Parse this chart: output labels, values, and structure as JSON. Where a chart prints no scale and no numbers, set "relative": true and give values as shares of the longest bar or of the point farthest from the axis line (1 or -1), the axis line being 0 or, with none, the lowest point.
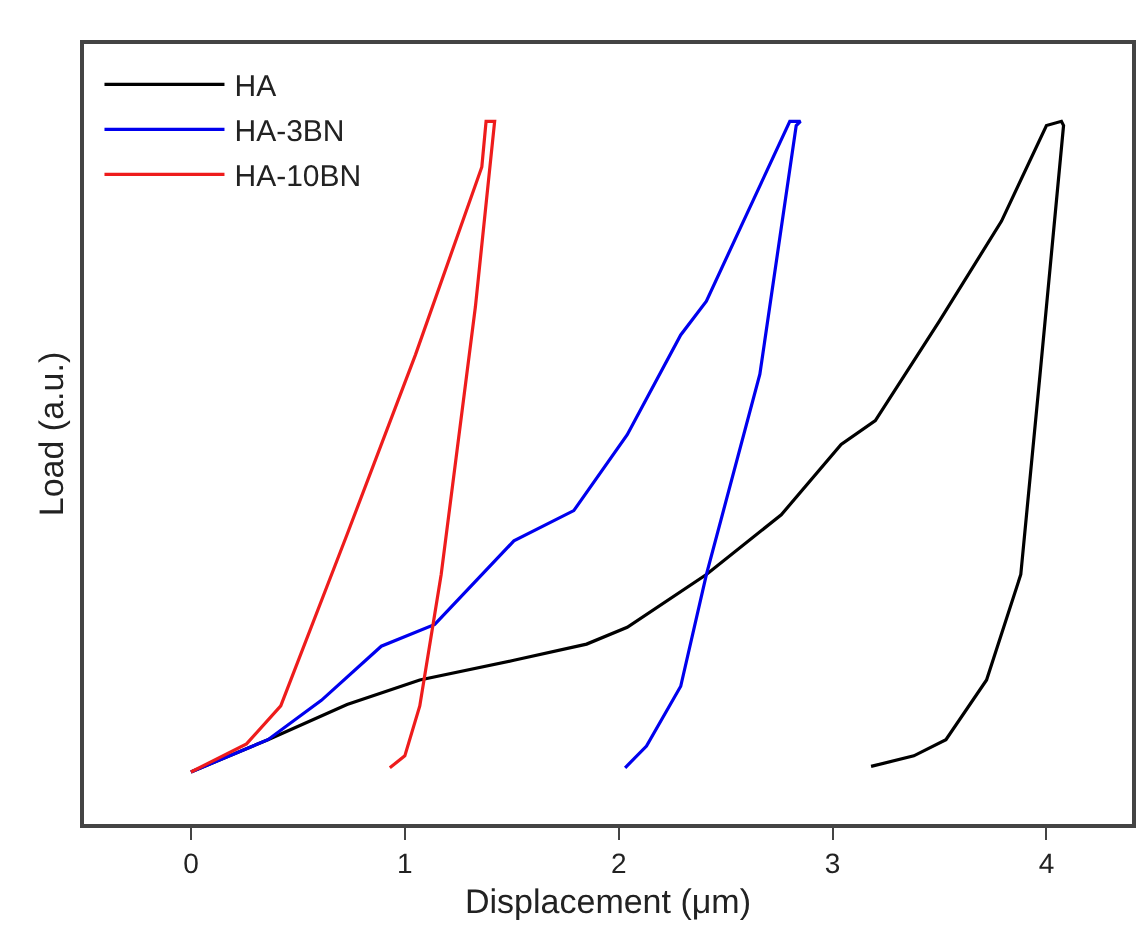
{
  "chart_data": {
    "type": "line",
    "xlabel": "Displacement (μm)",
    "ylabel": "Load (a.u.)",
    "relative": true,
    "xlim": [
      -0.5,
      4.4
    ],
    "xticks": [
      0,
      1,
      2,
      3,
      4
    ],
    "grid": false,
    "legend": "top left",
    "marker": "none",
    "line_style": "solid",
    "series": [
      {
        "name": "HA",
        "color": "#000000",
        "x": [
          0,
          0.36,
          0.73,
          1.07,
          1.51,
          1.85,
          2.04,
          2.41,
          2.76,
          3.04,
          3.2,
          3.5,
          3.79,
          4.0,
          4.07,
          4.08,
          3.97,
          3.88,
          3.72,
          3.53,
          3.38,
          3.18
        ],
        "values": [
          0.074,
          0.12,
          0.17,
          0.205,
          0.233,
          0.256,
          0.28,
          0.355,
          0.44,
          0.54,
          0.574,
          0.716,
          0.858,
          0.994,
          1.0,
          0.994,
          0.64,
          0.355,
          0.205,
          0.12,
          0.097,
          0.082
        ]
      },
      {
        "name": "HA-3BN",
        "color": "#0000ee",
        "x": [
          0,
          0.36,
          0.61,
          0.89,
          1.14,
          1.51,
          1.79,
          2.04,
          2.29,
          2.41,
          2.57,
          2.8,
          2.85,
          2.83,
          2.66,
          2.41,
          2.29,
          2.13,
          2.03
        ],
        "values": [
          0.074,
          0.12,
          0.176,
          0.253,
          0.284,
          0.403,
          0.446,
          0.554,
          0.696,
          0.744,
          0.849,
          1.0,
          1.0,
          0.994,
          0.64,
          0.355,
          0.196,
          0.111,
          0.08
        ]
      },
      {
        "name": "HA-10BN",
        "color": "#ee1c1c",
        "x": [
          0,
          0.26,
          0.42,
          0.73,
          1.05,
          1.36,
          1.38,
          1.42,
          1.33,
          1.17,
          1.07,
          1.0,
          0.93
        ],
        "values": [
          0.074,
          0.114,
          0.168,
          0.412,
          0.668,
          0.935,
          1.0,
          1.0,
          0.736,
          0.355,
          0.168,
          0.097,
          0.08
        ]
      }
    ]
  }
}
